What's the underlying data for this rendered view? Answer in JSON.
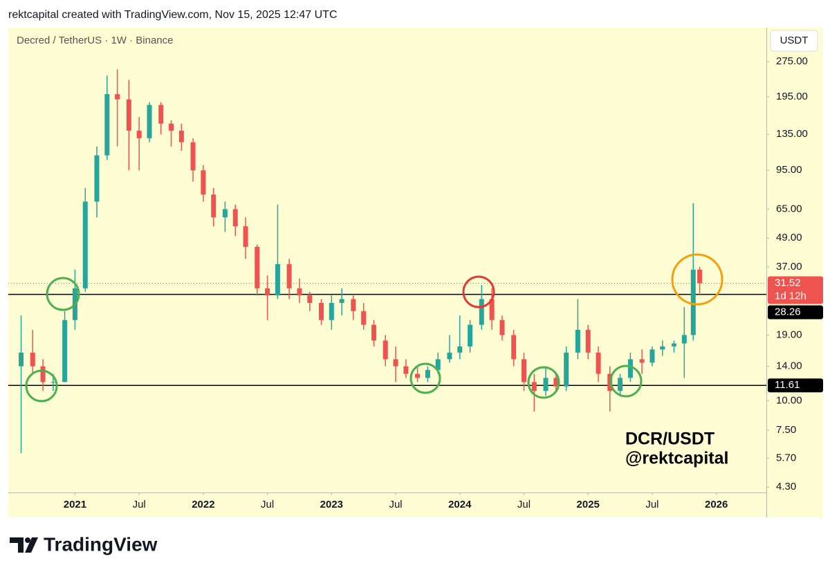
{
  "header": "rektcapital created with TradingView.com, Nov 15, 2025 12:47 UTC",
  "brand": "TradingView",
  "chart_data": {
    "type": "candlestick",
    "title": "Decred / TetherUS · 1W · Binance",
    "currency": "USDT",
    "annotation": [
      "DCR/USDT",
      "@rektcapital"
    ],
    "countdown": "1d 12h",
    "log_scale": true,
    "up_color": "#26a69a",
    "down_color": "#ef5350",
    "ylim": [
      4.08,
      383
    ],
    "yticks": [
      {
        "value": 275,
        "label": "275.00"
      },
      {
        "value": 195,
        "label": "195.00"
      },
      {
        "value": 135,
        "label": "135.00"
      },
      {
        "value": 95,
        "label": "95.00"
      },
      {
        "value": 65,
        "label": "65.00"
      },
      {
        "value": 49,
        "label": "49.00"
      },
      {
        "value": 37,
        "label": "37.00"
      },
      {
        "value": 19,
        "label": "19.00"
      },
      {
        "value": 14,
        "label": "14.00"
      },
      {
        "value": 10,
        "label": "10.00"
      },
      {
        "value": 7.5,
        "label": "7.50"
      },
      {
        "value": 5.7,
        "label": "5.70"
      },
      {
        "value": 4.3,
        "label": "4.30"
      }
    ],
    "xlim": [
      2020.48,
      2026.39
    ],
    "xticks": [
      2021,
      {
        "value": 2021.5,
        "label": "Jul"
      },
      2022,
      {
        "value": 2022.5,
        "label": "Jul"
      },
      2023,
      {
        "value": 2023.5,
        "label": "Jul"
      },
      2024,
      {
        "value": 2024.5,
        "label": "Jul"
      },
      2025,
      {
        "value": 2025.5,
        "label": "Jul"
      },
      2026
    ],
    "current_price": 31.52,
    "levels": [
      28.26,
      11.61
    ],
    "x": [
      2020.58,
      2020.67,
      2020.75,
      2020.83,
      2020.92,
      2021.0,
      2021.08,
      2021.17,
      2021.25,
      2021.33,
      2021.42,
      2021.5,
      2021.58,
      2021.67,
      2021.75,
      2021.83,
      2021.92,
      2022.0,
      2022.08,
      2022.17,
      2022.25,
      2022.33,
      2022.42,
      2022.5,
      2022.58,
      2022.67,
      2022.75,
      2022.83,
      2022.92,
      2023.0,
      2023.08,
      2023.17,
      2023.25,
      2023.33,
      2023.42,
      2023.5,
      2023.58,
      2023.67,
      2023.75,
      2023.83,
      2023.92,
      2024.0,
      2024.08,
      2024.17,
      2024.25,
      2024.33,
      2024.42,
      2024.5,
      2024.58,
      2024.67,
      2024.75,
      2024.83,
      2024.92,
      2025.0,
      2025.08,
      2025.17,
      2025.25,
      2025.33,
      2025.42,
      2025.5,
      2025.58,
      2025.67,
      2025.75,
      2025.82,
      2025.87
    ],
    "open": [
      14,
      16,
      14,
      12,
      12,
      22,
      30,
      70,
      110,
      200,
      190,
      140,
      130,
      180,
      150,
      140,
      125,
      95,
      75,
      60,
      65,
      55,
      45,
      30,
      28,
      38,
      30,
      28,
      26,
      22,
      26,
      27,
      24,
      21,
      18,
      15,
      14,
      13,
      12.5,
      13.5,
      15,
      16,
      17,
      21,
      27,
      22,
      19,
      15,
      12,
      11,
      12.5,
      11.5,
      16,
      20,
      16,
      13,
      11,
      12.5,
      15,
      14.5,
      16.5,
      17,
      17.5,
      19,
      36
    ],
    "high": [
      23,
      20,
      15,
      13,
      24,
      36,
      80,
      120,
      240,
      255,
      230,
      160,
      185,
      185,
      155,
      150,
      130,
      100,
      80,
      70,
      68,
      60,
      46,
      34,
      68,
      40,
      33,
      29,
      27,
      28,
      30,
      28,
      26,
      22,
      19,
      17,
      15,
      14,
      14,
      16,
      19,
      23,
      22,
      31,
      30,
      23,
      20,
      16,
      13,
      14,
      13,
      17,
      27,
      21,
      17,
      14,
      13,
      16,
      16.5,
      17,
      18,
      18,
      25,
      69,
      37
    ],
    "low": [
      6,
      13,
      11,
      11,
      12,
      20,
      29,
      60,
      105,
      120,
      95,
      95,
      125,
      135,
      120,
      115,
      85,
      70,
      55,
      52,
      50,
      40,
      28,
      22,
      27,
      27,
      26,
      24,
      21,
      20,
      23,
      22,
      20,
      17,
      14,
      12,
      12.5,
      12,
      12,
      13,
      14.5,
      15,
      16,
      20,
      20,
      18,
      14,
      11,
      9,
      10.5,
      11,
      11,
      15,
      15,
      12,
      9,
      10.5,
      12,
      13,
      14,
      15.5,
      16,
      12.5,
      18,
      28
    ],
    "close": [
      16,
      14,
      12,
      12,
      22,
      30,
      70,
      110,
      200,
      190,
      140,
      130,
      180,
      150,
      140,
      125,
      95,
      75,
      60,
      65,
      55,
      45,
      30,
      28,
      38,
      30,
      28,
      26,
      22,
      26,
      27,
      24,
      21,
      18,
      15,
      14,
      13,
      12.5,
      13.5,
      15,
      16,
      17,
      21,
      27,
      22,
      19,
      15,
      12,
      11,
      12.5,
      11.5,
      16,
      20,
      16,
      13,
      11,
      12.5,
      15,
      14.5,
      16.5,
      17,
      17.5,
      19,
      36,
      31.52
    ]
  }
}
